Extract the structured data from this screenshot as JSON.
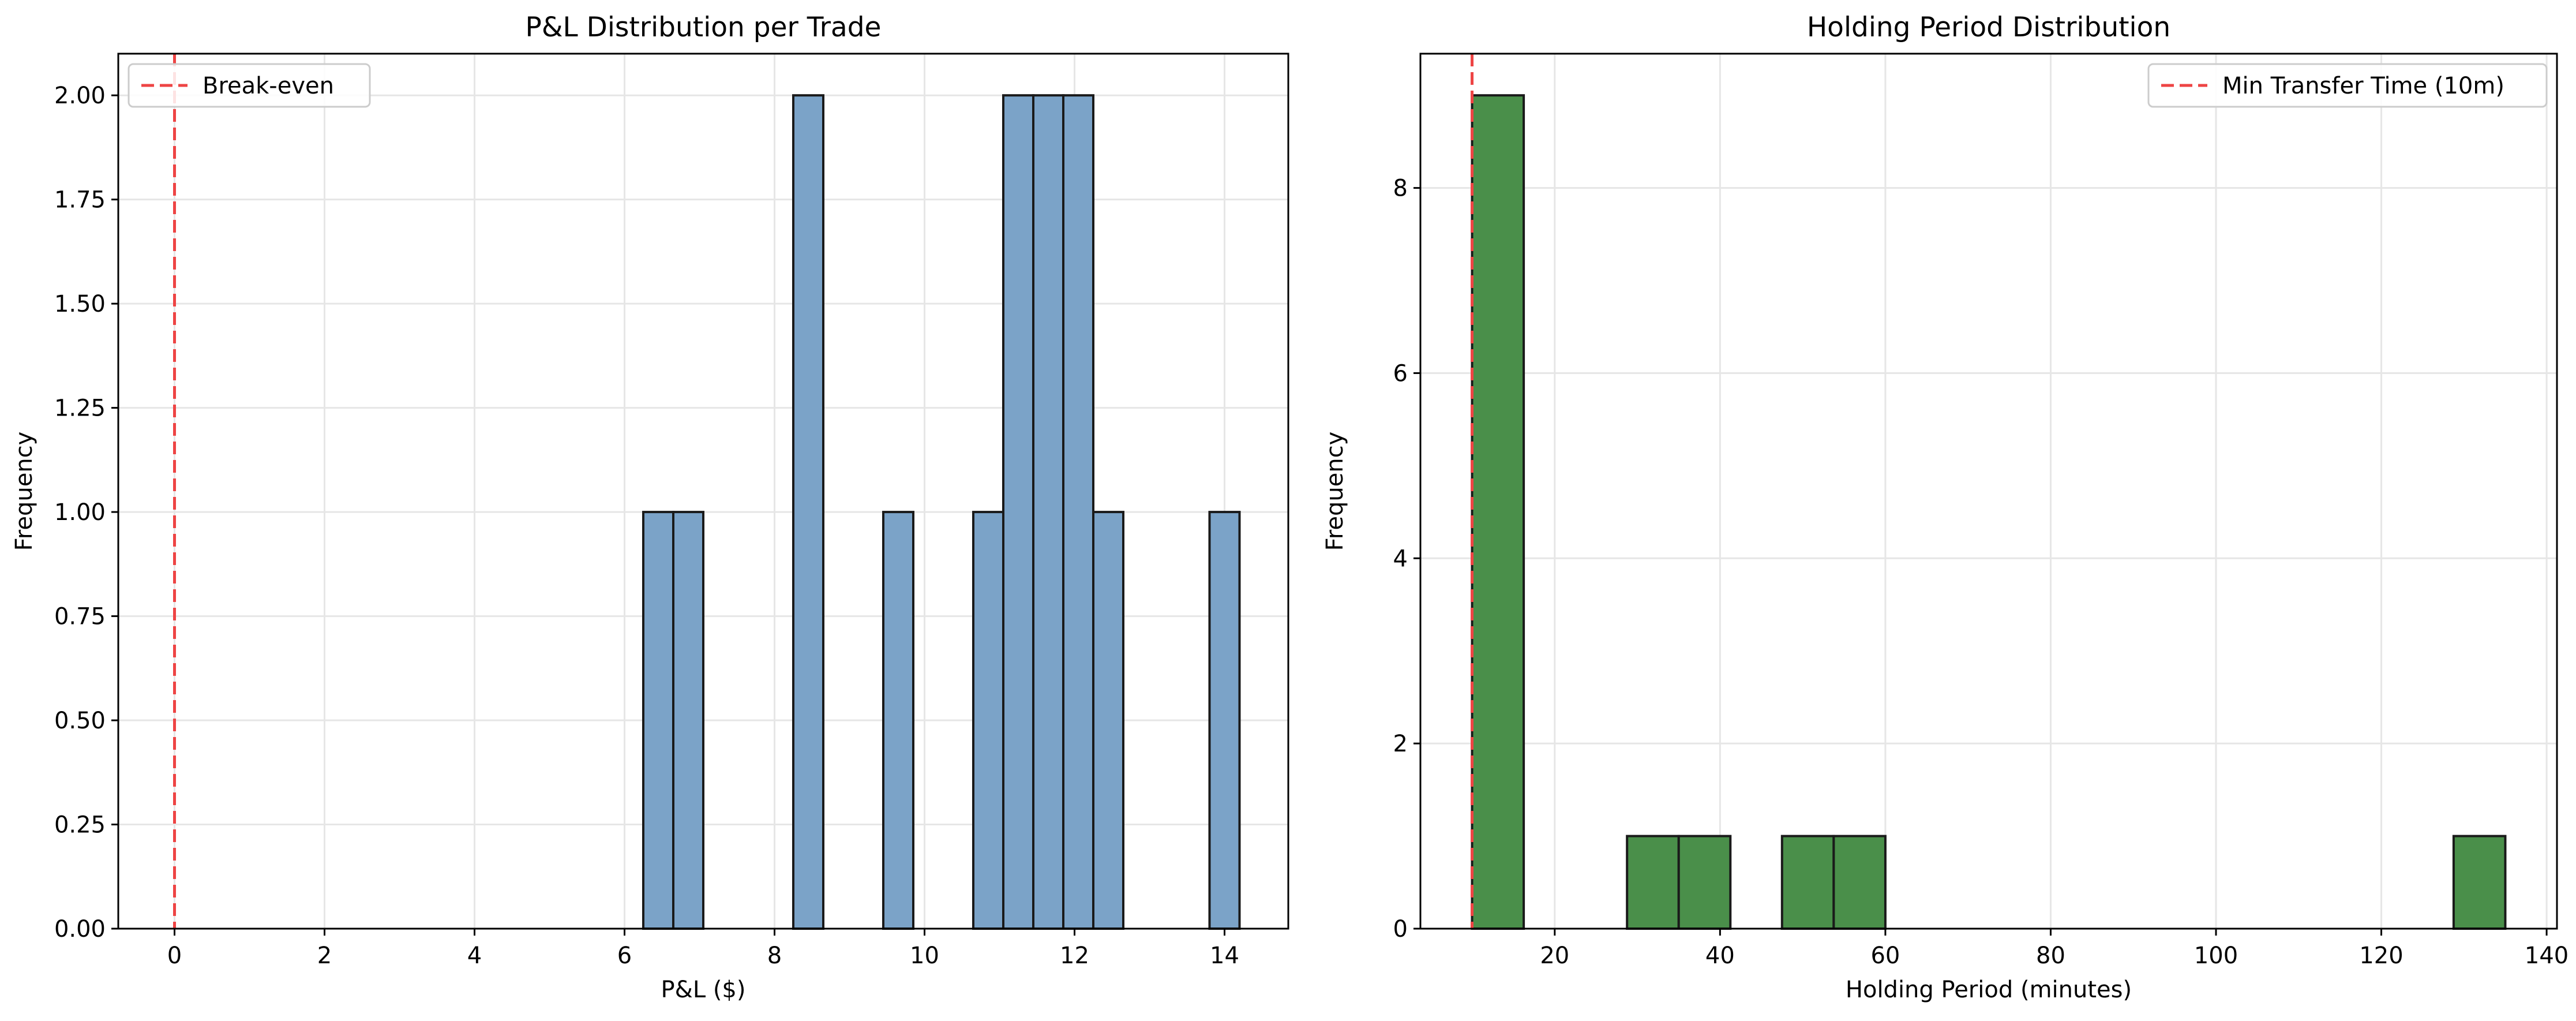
{
  "colors": {
    "bar_left": "#7BA3C8",
    "bar_right": "#4A8F4A",
    "bar_edge": "#1a1a1a",
    "ref_line": "#EE4444",
    "grid": "#e6e6e6"
  },
  "chart_data": [
    {
      "type": "bar",
      "subtype": "histogram",
      "title": "P&L Distribution per Trade",
      "xlabel": "P&L ($)",
      "ylabel": "Frequency",
      "xlim": [
        -0.75,
        14.85
      ],
      "ylim": [
        0,
        2.1
      ],
      "xticks": [
        0,
        2,
        4,
        6,
        8,
        10,
        12,
        14
      ],
      "yticks": [
        0.0,
        0.25,
        0.5,
        0.75,
        1.0,
        1.25,
        1.5,
        1.75,
        2.0
      ],
      "xtick_labels": [
        "0",
        "2",
        "4",
        "6",
        "8",
        "10",
        "12",
        "14"
      ],
      "ytick_labels": [
        "0.00",
        "0.25",
        "0.50",
        "0.75",
        "1.00",
        "1.25",
        "1.50",
        "1.75",
        "2.00"
      ],
      "grid": true,
      "bins": [
        {
          "x0": 6.25,
          "x1": 6.65,
          "count": 1
        },
        {
          "x0": 6.65,
          "x1": 7.05,
          "count": 1
        },
        {
          "x0": 8.25,
          "x1": 8.65,
          "count": 2
        },
        {
          "x0": 9.45,
          "x1": 9.85,
          "count": 1
        },
        {
          "x0": 10.65,
          "x1": 11.05,
          "count": 1
        },
        {
          "x0": 11.05,
          "x1": 11.45,
          "count": 2
        },
        {
          "x0": 11.45,
          "x1": 11.85,
          "count": 2
        },
        {
          "x0": 11.85,
          "x1": 12.25,
          "count": 2
        },
        {
          "x0": 12.25,
          "x1": 12.65,
          "count": 1
        },
        {
          "x0": 13.8,
          "x1": 14.2,
          "count": 1
        }
      ],
      "reference_line": {
        "x": 0,
        "label": "Break-even"
      },
      "legend": {
        "position": "top-left",
        "entries": [
          "Break-even"
        ]
      }
    },
    {
      "type": "bar",
      "subtype": "histogram",
      "title": "Holding Period Distribution",
      "xlabel": "Holding Period (minutes)",
      "ylabel": "Frequency",
      "xlim": [
        3.75,
        141.25
      ],
      "ylim": [
        0,
        9.45
      ],
      "xticks": [
        20,
        40,
        60,
        80,
        100,
        120,
        140
      ],
      "yticks": [
        0,
        2,
        4,
        6,
        8
      ],
      "xtick_labels": [
        "20",
        "40",
        "60",
        "80",
        "100",
        "120",
        "140"
      ],
      "ytick_labels": [
        "0",
        "2",
        "4",
        "6",
        "8"
      ],
      "grid": true,
      "bins": [
        {
          "x0": 10,
          "x1": 16.25,
          "count": 9
        },
        {
          "x0": 28.75,
          "x1": 35,
          "count": 1
        },
        {
          "x0": 35,
          "x1": 41.25,
          "count": 1
        },
        {
          "x0": 47.5,
          "x1": 53.75,
          "count": 1
        },
        {
          "x0": 53.75,
          "x1": 60,
          "count": 1
        },
        {
          "x0": 128.75,
          "x1": 135,
          "count": 1
        }
      ],
      "reference_line": {
        "x": 10,
        "label": "Min Transfer Time (10m)"
      },
      "legend": {
        "position": "top-right",
        "entries": [
          "Min Transfer Time (10m)"
        ]
      }
    }
  ]
}
